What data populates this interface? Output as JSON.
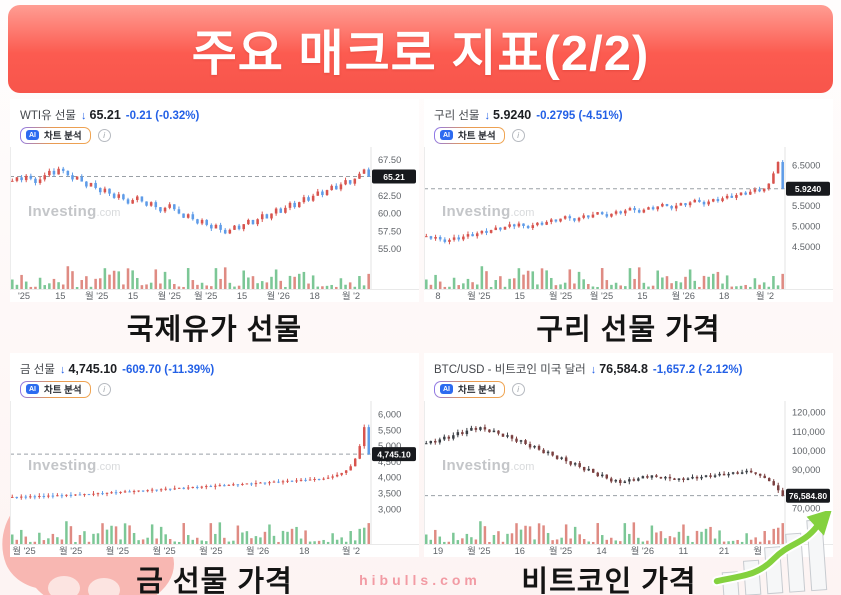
{
  "title": "주요 매크로 지표(2/2)",
  "ai": {
    "icon_label": "AI",
    "button_label": "차트 분석",
    "info_glyph": "i"
  },
  "watermark": {
    "name": "Investing",
    "suffix": ".com"
  },
  "footer": {
    "site": "hibulls.com"
  },
  "header_arrow": "↓",
  "colors": {
    "banner_top": "#ff9d93",
    "banner_bottom": "#fb564b",
    "change_blue": "#2360e6",
    "price_dark": "#1d1f23",
    "badge_bg": "#17191d",
    "candle_up_red": "#d8544e",
    "candle_down_blue": "#5f9ce8"
  },
  "panels": [
    {
      "name": "WTI유 선물",
      "price": "65.21",
      "change": "-0.21 (-0.32%)",
      "caption": "국제유가 선물"
    },
    {
      "name": "구리 선물",
      "price": "5.9240",
      "change": "-0.2795 (-4.51%)",
      "caption": "구리 선물 가격"
    },
    {
      "name": "금 선물",
      "price": "4,745.10",
      "change": "-609.70 (-11.39%)",
      "caption": "금 선물 가격"
    },
    {
      "name": "BTC/USD - 비트코인 미국 달러",
      "price": "76,584.8",
      "change": "-1,657.2 (-2.12%)",
      "caption": "비트코인 가격"
    }
  ],
  "chart_data": [
    {
      "type": "candlestick",
      "title": "WTI유 선물",
      "current": 65.21,
      "badge": "65.21",
      "ylim": [
        53.6,
        68.8
      ],
      "y_ticks": [
        {
          "v": 67.5,
          "label": "67.50"
        },
        {
          "v": 62.5,
          "label": "62.50"
        },
        {
          "v": 60.0,
          "label": "60.00"
        },
        {
          "v": 57.5,
          "label": "57.50"
        },
        {
          "v": 55.0,
          "label": "55.00"
        }
      ],
      "x_labels": [
        "'25",
        "15",
        "월 '25",
        "15",
        "월 '25",
        "월 '25",
        "15",
        "월 '26",
        "18",
        "월 '2"
      ],
      "colors": {
        "up": "#d8544e",
        "down": "#5f9ce8",
        "vol_up": "#7cc796",
        "vol_down": "#df8b83"
      },
      "closes": [
        64.6,
        65.1,
        64.7,
        65.3,
        64.9,
        64.3,
        64.8,
        65.4,
        66.0,
        65.5,
        66.3,
        66.0,
        65.4,
        64.8,
        65.2,
        64.5,
        63.8,
        64.3,
        63.6,
        63.0,
        63.5,
        62.8,
        62.2,
        62.7,
        62.0,
        61.4,
        61.9,
        62.4,
        61.7,
        61.1,
        61.6,
        60.9,
        60.3,
        60.8,
        61.3,
        60.6,
        60.0,
        59.4,
        59.9,
        59.2,
        58.6,
        59.1,
        58.4,
        57.9,
        58.4,
        57.7,
        57.2,
        57.7,
        58.3,
        57.8,
        58.5,
        59.1,
        58.5,
        59.2,
        59.9,
        59.3,
        60.0,
        60.7,
        60.1,
        60.8,
        61.5,
        60.9,
        61.6,
        62.3,
        61.8,
        62.5,
        63.1,
        62.6,
        63.3,
        63.9,
        63.4,
        64.1,
        64.7,
        64.2,
        64.9,
        65.6,
        66.2,
        65.21
      ]
    },
    {
      "type": "candlestick",
      "title": "구리 선물",
      "current": 5.924,
      "badge": "5.9240",
      "ylim": [
        4.2,
        6.85
      ],
      "y_ticks": [
        {
          "v": 6.5,
          "label": "6.5000"
        },
        {
          "v": 5.5,
          "label": "5.5000"
        },
        {
          "v": 5.0,
          "label": "5.0000"
        },
        {
          "v": 4.5,
          "label": "4.5000"
        }
      ],
      "x_labels": [
        "8",
        "월 '25",
        "15",
        "월 '25",
        "월 '25",
        "15",
        "월 '26",
        "18",
        "월 '2"
      ],
      "colors": {
        "up": "#d8544e",
        "down": "#5f9ce8",
        "vol_up": "#7cc796",
        "vol_down": "#df8b83"
      },
      "closes": [
        4.76,
        4.7,
        4.74,
        4.68,
        4.62,
        4.67,
        4.73,
        4.68,
        4.75,
        4.81,
        4.76,
        4.83,
        4.89,
        4.84,
        4.91,
        4.97,
        4.92,
        4.99,
        5.05,
        5.0,
        5.07,
        5.01,
        4.96,
        5.03,
        5.09,
        5.04,
        5.11,
        5.17,
        5.12,
        5.19,
        5.25,
        5.2,
        5.14,
        5.21,
        5.27,
        5.22,
        5.29,
        5.35,
        5.3,
        5.24,
        5.31,
        5.37,
        5.32,
        5.39,
        5.45,
        5.4,
        5.34,
        5.41,
        5.47,
        5.42,
        5.49,
        5.55,
        5.5,
        5.44,
        5.51,
        5.57,
        5.52,
        5.59,
        5.65,
        5.6,
        5.54,
        5.61,
        5.67,
        5.62,
        5.69,
        5.75,
        5.7,
        5.77,
        5.83,
        5.78,
        5.85,
        5.91,
        5.86,
        5.93,
        6.05,
        6.3,
        6.58,
        5.924
      ]
    },
    {
      "type": "candlestick",
      "title": "금 선물",
      "current": 4745.1,
      "badge": "4,745.10",
      "ylim": [
        2850,
        6300
      ],
      "y_ticks": [
        {
          "v": 6000,
          "label": "6,000"
        },
        {
          "v": 5500,
          "label": "5,500"
        },
        {
          "v": 5000,
          "label": "5,000"
        },
        {
          "v": 4500,
          "label": "4,500"
        },
        {
          "v": 4000,
          "label": "4,000"
        },
        {
          "v": 3500,
          "label": "3,500"
        },
        {
          "v": 3000,
          "label": "3,000"
        }
      ],
      "x_labels": [
        "월 '25",
        "월 '25",
        "월 '25",
        "월 '25",
        "월 '25",
        "월 '26",
        "18",
        "월 '2"
      ],
      "colors": {
        "up": "#d8544e",
        "down": "#5f9ce8",
        "vol_up": "#7cc796",
        "vol_down": "#df8b83"
      },
      "closes": [
        3390,
        3370,
        3400,
        3380,
        3410,
        3392,
        3420,
        3402,
        3432,
        3414,
        3444,
        3426,
        3456,
        3438,
        3468,
        3450,
        3480,
        3462,
        3492,
        3510,
        3490,
        3520,
        3538,
        3518,
        3548,
        3566,
        3546,
        3576,
        3594,
        3574,
        3604,
        3622,
        3602,
        3632,
        3650,
        3630,
        3660,
        3678,
        3658,
        3688,
        3706,
        3686,
        3716,
        3734,
        3714,
        3744,
        3762,
        3742,
        3772,
        3790,
        3770,
        3800,
        3818,
        3798,
        3828,
        3846,
        3826,
        3856,
        3874,
        3854,
        3884,
        3902,
        3882,
        3912,
        3930,
        3910,
        3940,
        3958,
        3938,
        3968,
        4000,
        4040,
        4090,
        4150,
        4230,
        4360,
        4600,
        5000,
        5600,
        4745.1
      ]
    },
    {
      "type": "candlestick",
      "title": "BTC/USD",
      "current": 76584.8,
      "badge": "76,584.80",
      "ylim": [
        67000,
        124000
      ],
      "y_ticks": [
        {
          "v": 120000,
          "label": "120,000"
        },
        {
          "v": 110000,
          "label": "110,000"
        },
        {
          "v": 100000,
          "label": "100,000"
        },
        {
          "v": 90000,
          "label": "90,000"
        },
        {
          "v": 70000,
          "label": "70,000"
        }
      ],
      "x_labels": [
        "19",
        "월 '25",
        "16",
        "월 '25",
        "14",
        "월 '26",
        "11",
        "21",
        "월 '26"
      ],
      "colors": {
        "up": "#3a3f45",
        "down": "#7a4040",
        "vol_up": "#7cc796",
        "vol_down": "#df8b83"
      },
      "closes": [
        104000,
        105200,
        104400,
        106000,
        107400,
        106400,
        108200,
        109800,
        108800,
        110600,
        112000,
        111000,
        112400,
        111200,
        109800,
        110600,
        109000,
        107400,
        108200,
        106400,
        104800,
        105600,
        103600,
        101800,
        102600,
        100600,
        98800,
        99600,
        97600,
        95800,
        96600,
        94600,
        92800,
        93600,
        91600,
        89800,
        90600,
        88600,
        86800,
        87600,
        85600,
        84000,
        84800,
        83200,
        84000,
        85200,
        84400,
        85600,
        86800,
        86000,
        87200,
        86400,
        85600,
        86400,
        85600,
        84800,
        85600,
        84800,
        85600,
        86400,
        85600,
        86400,
        87200,
        86400,
        87200,
        88000,
        87200,
        88000,
        88800,
        88000,
        88800,
        89600,
        88800,
        88000,
        87000,
        85800,
        84200,
        82000,
        79400,
        76584.8
      ]
    }
  ]
}
